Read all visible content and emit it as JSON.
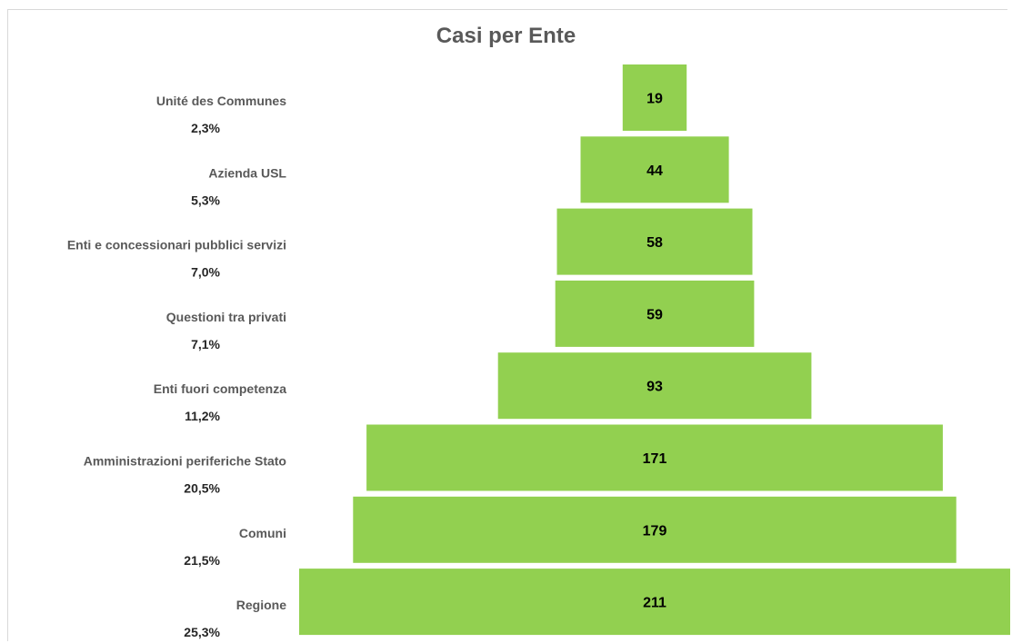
{
  "chart_data": {
    "type": "bar",
    "title": "Casi per Ente",
    "style": "centered funnel",
    "bar_color": "#92d050",
    "categories": [
      "Unité des Communes",
      "Azienda USL",
      "Enti e concessionari pubblici servizi",
      "Questioni tra privati",
      "Enti fuori competenza",
      "Amministrazioni periferiche Stato",
      "Comuni",
      "Regione"
    ],
    "values": [
      19,
      44,
      58,
      59,
      93,
      171,
      179,
      211
    ],
    "percentages": [
      "2,3%",
      "5,3%",
      "7,0%",
      "7,1%",
      "11,2%",
      "20,5%",
      "21,5%",
      "25,3%"
    ]
  }
}
